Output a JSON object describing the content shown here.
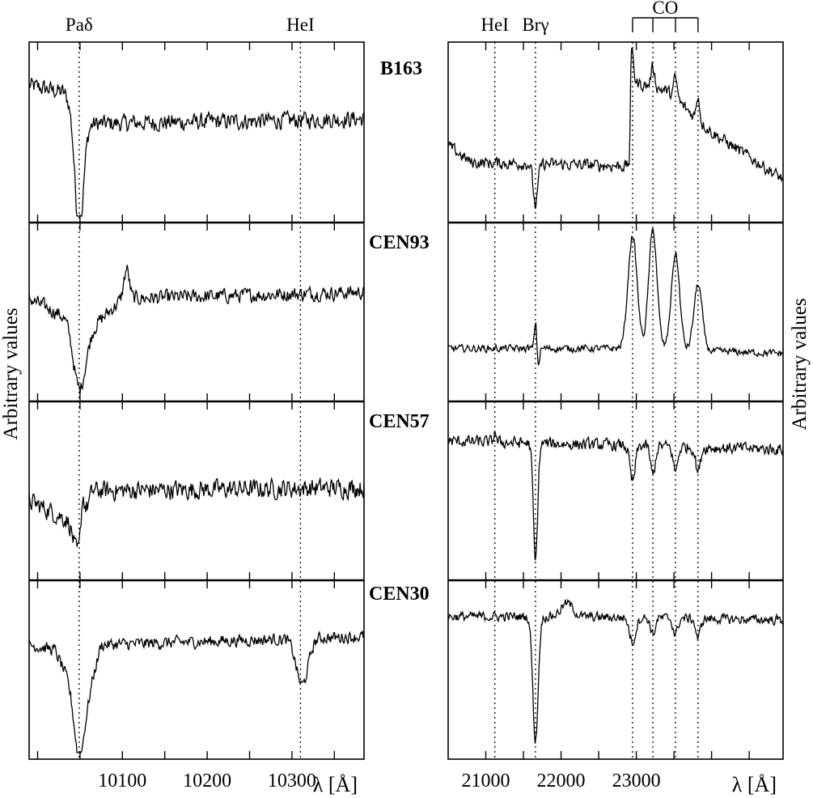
{
  "chart_data": {
    "type": "line",
    "ylabel": "Arbitrary values",
    "xlabel": "λ [Å]",
    "stars": [
      "B163",
      "CEN93",
      "CEN57",
      "CEN30"
    ],
    "panels": [
      {
        "name": "left",
        "xlim": [
          9990,
          10385
        ],
        "xticks": [
          10000,
          10050,
          10100,
          10150,
          10200,
          10250,
          10300,
          10350
        ],
        "xtick_labels": [
          {
            "value": 10100,
            "label": "10100"
          },
          {
            "value": 10200,
            "label": "10200"
          },
          {
            "value": 10300,
            "label": "10300"
          }
        ],
        "lines": [
          {
            "label": "Paδ",
            "x": 10049
          },
          {
            "label": "HeI",
            "x": 10310
          }
        ],
        "series": [
          {
            "name": "B163",
            "continuum": 0.58,
            "noise": 0.07,
            "trend": [
              [
                9990,
                0.78
              ],
              [
                10030,
                0.74
              ],
              [
                10060,
                0.55
              ],
              [
                10385,
                0.58
              ]
            ],
            "features": [
              {
                "x": 10049,
                "depth": -0.72,
                "width": 5
              }
            ]
          },
          {
            "name": "CEN93",
            "continuum": 0.6,
            "noise": 0.06,
            "trend": [
              [
                9990,
                0.58
              ],
              [
                10040,
                0.45
              ],
              [
                10060,
                0.38
              ],
              [
                10100,
                0.58
              ],
              [
                10385,
                0.62
              ]
            ],
            "features": [
              {
                "x": 10049,
                "depth": -0.38,
                "width": 7
              },
              {
                "x": 10105,
                "depth": 0.18,
                "width": 3
              }
            ]
          },
          {
            "name": "CEN57",
            "continuum": 0.52,
            "noise": 0.08,
            "trend": [
              [
                9990,
                0.44
              ],
              [
                10030,
                0.34
              ],
              [
                10050,
                0.3
              ],
              [
                10065,
                0.5
              ],
              [
                10385,
                0.52
              ]
            ],
            "features": [
              {
                "x": 10047,
                "depth": -0.18,
                "width": 5
              },
              {
                "x": 10053,
                "depth": 0.2,
                "width": 2
              }
            ]
          },
          {
            "name": "CEN30",
            "continuum": 0.7,
            "noise": 0.05,
            "trend": [
              [
                9990,
                0.65
              ],
              [
                10020,
                0.62
              ],
              [
                10040,
                0.4
              ],
              [
                10049,
                0.25
              ],
              [
                10060,
                0.35
              ],
              [
                10075,
                0.65
              ],
              [
                10385,
                0.7
              ]
            ],
            "features": [
              {
                "x": 10049,
                "depth": -0.3,
                "width": 6
              },
              {
                "x": 10312,
                "depth": -0.28,
                "width": 7
              }
            ]
          }
        ]
      },
      {
        "name": "right",
        "xlim": [
          20500,
          24950
        ],
        "xticks": [
          21000,
          21500,
          22000,
          22500,
          23000,
          23500,
          24000,
          24500
        ],
        "xtick_labels": [
          {
            "value": 21000,
            "label": "21000"
          },
          {
            "value": 22000,
            "label": "22000"
          },
          {
            "value": 23000,
            "label": "23000"
          }
        ],
        "lines": [
          {
            "label": "HeI",
            "x": 21120
          },
          {
            "label": "Brγ",
            "x": 21660
          }
        ],
        "co_label": "CO",
        "co_bands": [
          22950,
          23220,
          23520,
          23820
        ],
        "series": [
          {
            "name": "B163",
            "continuum": 0.35,
            "noise": 0.05,
            "trend": [
              [
                20500,
                0.42
              ],
              [
                20800,
                0.32
              ],
              [
                22850,
                0.3
              ],
              [
                22910,
                0.3
              ],
              [
                22930,
                0.8
              ],
              [
                23400,
                0.75
              ],
              [
                24000,
                0.5
              ],
              [
                24950,
                0.22
              ]
            ],
            "features": [
              {
                "x": 21660,
                "depth": -0.25,
                "width": 30
              },
              {
                "x": 22945,
                "depth": 0.2,
                "width": 20
              },
              {
                "x": 23220,
                "depth": 0.12,
                "width": 25
              },
              {
                "x": 23520,
                "depth": 0.12,
                "width": 25
              },
              {
                "x": 23820,
                "depth": 0.15,
                "width": 20
              }
            ]
          },
          {
            "name": "CEN93",
            "continuum": 0.28,
            "noise": 0.03,
            "trend": [
              [
                20500,
                0.28
              ],
              [
                22900,
                0.28
              ],
              [
                24950,
                0.25
              ]
            ],
            "features": [
              {
                "x": 21660,
                "depth": 0.16,
                "width": 15
              },
              {
                "x": 21700,
                "depth": -0.1,
                "width": 15
              },
              {
                "x": 22950,
                "depth": 0.68,
                "width": 60
              },
              {
                "x": 23220,
                "depth": 0.72,
                "width": 55
              },
              {
                "x": 23520,
                "depth": 0.58,
                "width": 55
              },
              {
                "x": 23820,
                "depth": 0.4,
                "width": 55
              }
            ]
          },
          {
            "name": "CEN57",
            "continuum": 0.8,
            "noise": 0.05,
            "trend": [
              [
                20500,
                0.8
              ],
              [
                24950,
                0.75
              ]
            ],
            "features": [
              {
                "x": 21120,
                "depth": 0.08,
                "width": 12
              },
              {
                "x": 21660,
                "depth": -0.72,
                "width": 28
              },
              {
                "x": 22950,
                "depth": -0.22,
                "width": 35
              },
              {
                "x": 23220,
                "depth": -0.18,
                "width": 30
              },
              {
                "x": 23520,
                "depth": -0.15,
                "width": 30
              },
              {
                "x": 23820,
                "depth": -0.15,
                "width": 30
              }
            ]
          },
          {
            "name": "CEN30",
            "continuum": 0.8,
            "noise": 0.04,
            "trend": [
              [
                20500,
                0.82
              ],
              [
                22000,
                0.82
              ],
              [
                24950,
                0.8
              ]
            ],
            "features": [
              {
                "x": 21660,
                "depth": -0.75,
                "width": 35
              },
              {
                "x": 22080,
                "depth": 0.08,
                "width": 80
              },
              {
                "x": 22950,
                "depth": -0.15,
                "width": 40
              },
              {
                "x": 23220,
                "depth": -0.1,
                "width": 30
              },
              {
                "x": 23520,
                "depth": -0.1,
                "width": 30
              },
              {
                "x": 23820,
                "depth": -0.12,
                "width": 30
              }
            ]
          }
        ]
      }
    ]
  }
}
